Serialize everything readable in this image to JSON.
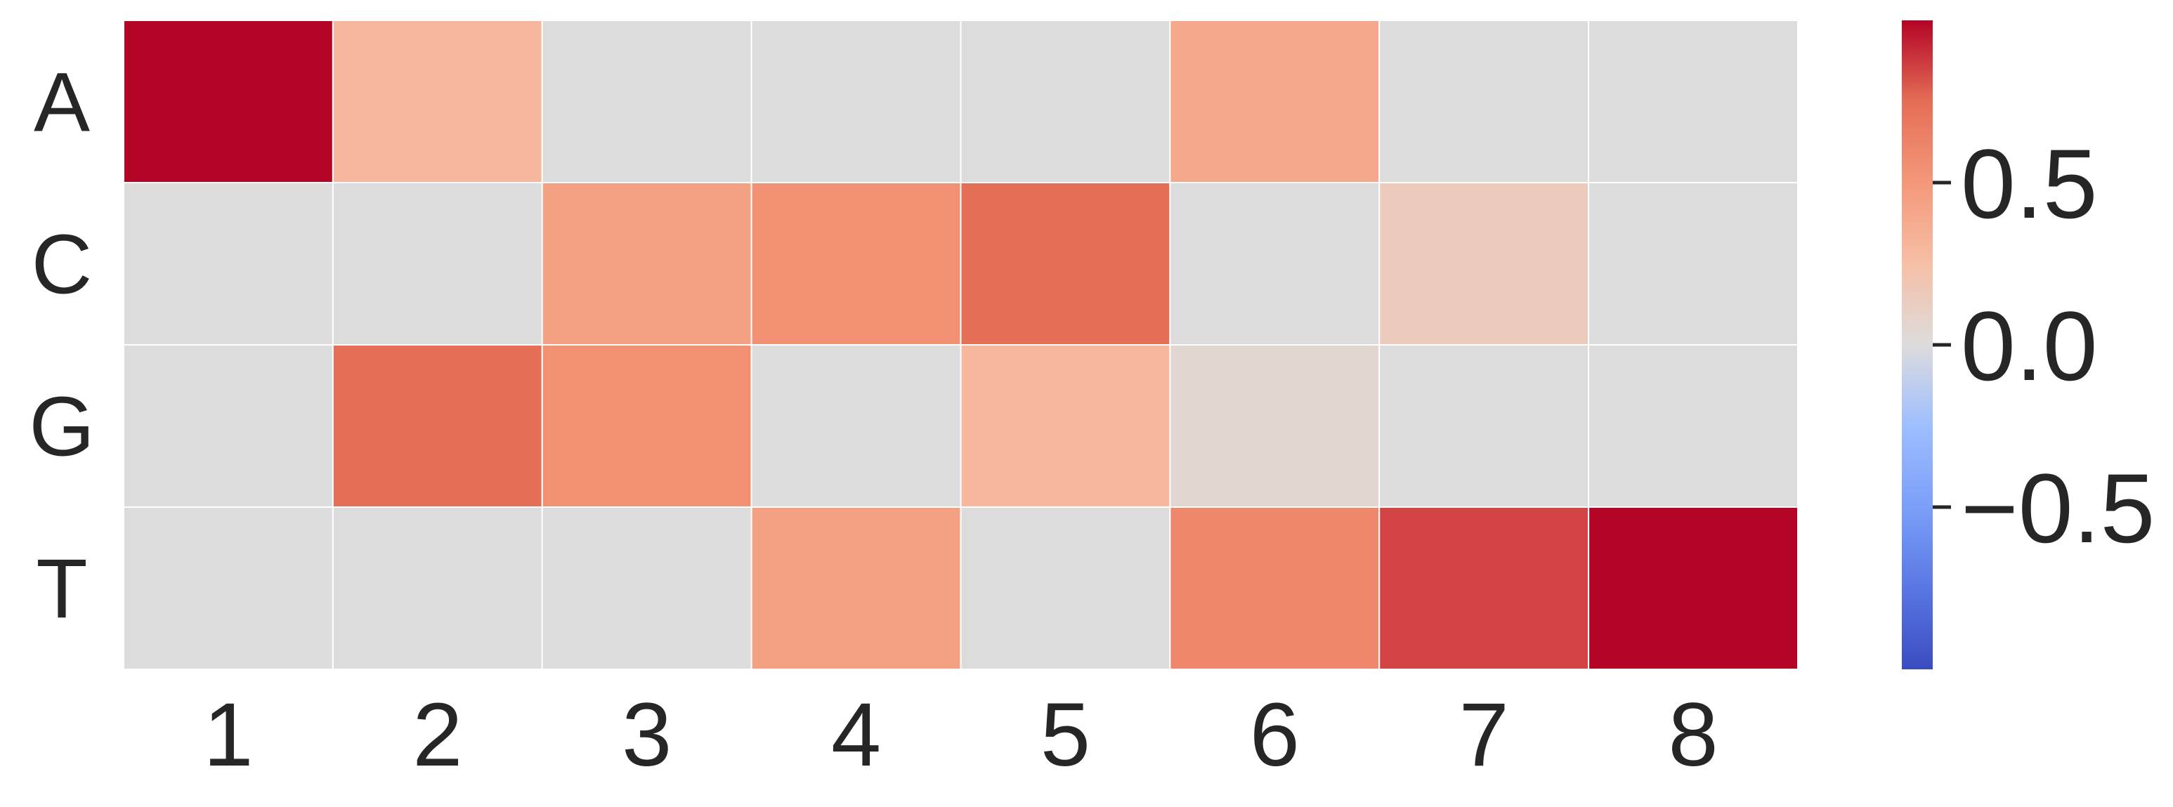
{
  "chart_data": {
    "type": "heatmap",
    "title": "",
    "xlabel": "",
    "ylabel": "",
    "x_categories": [
      "1",
      "2",
      "3",
      "4",
      "5",
      "6",
      "7",
      "8"
    ],
    "y_categories": [
      "A",
      "C",
      "G",
      "T"
    ],
    "values": [
      [
        1.0,
        0.3,
        0.0,
        0.0,
        0.0,
        0.4,
        0.0,
        0.0
      ],
      [
        0.0,
        0.0,
        0.45,
        0.55,
        0.75,
        0.0,
        0.15,
        0.0
      ],
      [
        0.0,
        0.75,
        0.55,
        0.0,
        0.3,
        0.05,
        0.0,
        0.0
      ],
      [
        0.0,
        0.0,
        0.0,
        0.45,
        0.0,
        0.6,
        0.85,
        1.0
      ]
    ],
    "colormap": "coolwarm",
    "vmin": -1.0,
    "vmax": 1.0,
    "grid": true,
    "colorbar": {
      "placement": "right",
      "ticks": [
        0.5,
        0.0,
        -0.5
      ],
      "tick_labels": [
        "0.5",
        "0.0",
        "−0.5"
      ]
    }
  }
}
